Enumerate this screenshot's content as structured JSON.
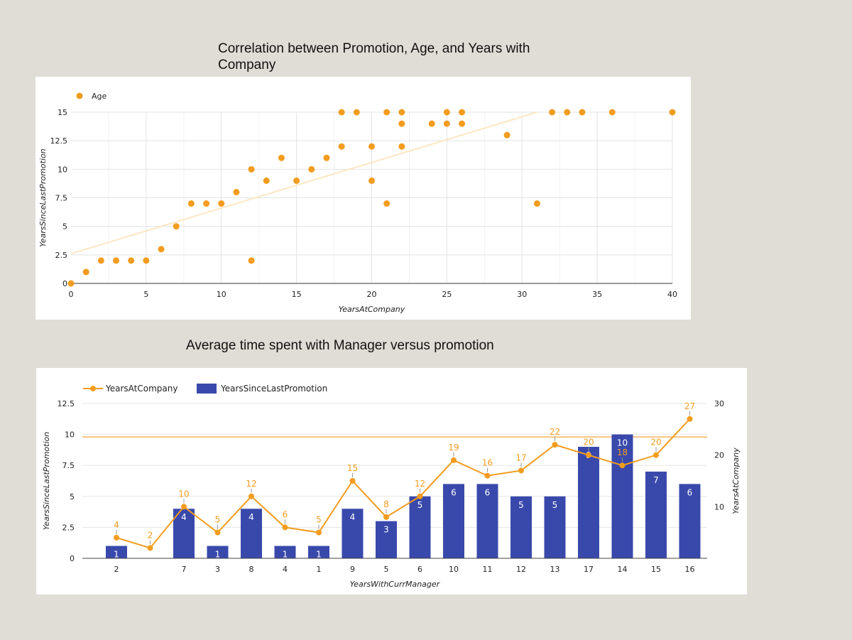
{
  "chart_data": [
    {
      "type": "scatter",
      "title": "Correlation between Promotion, Age, and Years with Company",
      "xlabel": "YearsAtCompany",
      "ylabel": "YearsSinceLastPromotion",
      "xlim": [
        0,
        40
      ],
      "ylim": [
        0,
        15
      ],
      "xticks": [
        0,
        5,
        10,
        15,
        20,
        25,
        30,
        35,
        40
      ],
      "yticks": [
        0,
        2.5,
        5,
        7.5,
        10,
        12.5,
        15
      ],
      "legend": "top-left",
      "grid": true,
      "series": [
        {
          "name": "Age",
          "color": "#f39c1f",
          "points": [
            [
              0,
              0
            ],
            [
              1,
              1
            ],
            [
              2,
              2
            ],
            [
              3,
              2
            ],
            [
              4,
              2
            ],
            [
              5,
              2
            ],
            [
              6,
              3
            ],
            [
              7,
              5
            ],
            [
              8,
              7
            ],
            [
              9,
              7
            ],
            [
              10,
              7
            ],
            [
              11,
              8
            ],
            [
              12,
              10
            ],
            [
              12,
              2
            ],
            [
              13,
              9
            ],
            [
              14,
              11
            ],
            [
              15,
              9
            ],
            [
              16,
              10
            ],
            [
              17,
              11
            ],
            [
              18,
              15
            ],
            [
              18,
              12
            ],
            [
              19,
              15
            ],
            [
              20,
              12
            ],
            [
              20,
              9
            ],
            [
              21,
              15
            ],
            [
              21,
              7
            ],
            [
              22,
              15
            ],
            [
              22,
              14
            ],
            [
              22,
              12
            ],
            [
              24,
              14
            ],
            [
              25,
              15
            ],
            [
              25,
              14
            ],
            [
              26,
              15
            ],
            [
              26,
              14
            ],
            [
              29,
              13
            ],
            [
              31,
              7
            ],
            [
              32,
              15
            ],
            [
              33,
              15
            ],
            [
              34,
              15
            ],
            [
              36,
              15
            ],
            [
              40,
              15
            ]
          ]
        }
      ],
      "trendline": {
        "color": "#fde7c4",
        "x": [
          0,
          31
        ],
        "y": [
          2.6,
          15
        ]
      }
    },
    {
      "type": "bar",
      "title": "Average time spent with Manager versus promotion",
      "xlabel": "YearsWithCurrManager",
      "ylabel": "YearsSinceLastPromotion",
      "y2label": "YearsAtCompany",
      "ylim": [
        0,
        12.5
      ],
      "y2lim": [
        0,
        30
      ],
      "yticks": [
        0,
        2.5,
        5,
        7.5,
        10,
        12.5
      ],
      "y2ticks": [
        10,
        20,
        30
      ],
      "legend": "top-left",
      "grid": true,
      "categories": [
        "2",
        "",
        "7",
        "3",
        "8",
        "4",
        "1",
        "9",
        "5",
        "6",
        "10",
        "11",
        "12",
        "13",
        "17",
        "14",
        "15",
        "16"
      ],
      "series": [
        {
          "name": "YearsAtCompany",
          "type": "line",
          "axis": "right",
          "color": "#f39c1f",
          "values": [
            4,
            2,
            10,
            5,
            12,
            6,
            5,
            15,
            8,
            12,
            19,
            16,
            17,
            22,
            20,
            18,
            20,
            27
          ],
          "labels": [
            "4",
            "2",
            "10",
            "5",
            "12",
            "6",
            "5",
            "15",
            "8",
            "12",
            "19",
            "16",
            "17",
            "22",
            "20",
            "18",
            "20",
            "27"
          ]
        },
        {
          "name": "YearsSinceLastPromotion",
          "type": "bar",
          "axis": "left",
          "color": "#3949ab",
          "values": [
            1,
            0,
            4,
            1,
            4,
            1,
            1,
            4,
            3,
            5,
            6,
            6,
            5,
            5,
            9,
            10,
            7,
            6
          ],
          "labels": [
            "1",
            "",
            "4",
            "1",
            "4",
            "1",
            "1",
            "4",
            "3",
            "5",
            "6",
            "6",
            "5",
            "5",
            "9",
            "10",
            "7",
            "6"
          ]
        }
      ],
      "reference_line": {
        "value": 9.8,
        "axis": "left",
        "color": "#f2a43a"
      }
    }
  ]
}
